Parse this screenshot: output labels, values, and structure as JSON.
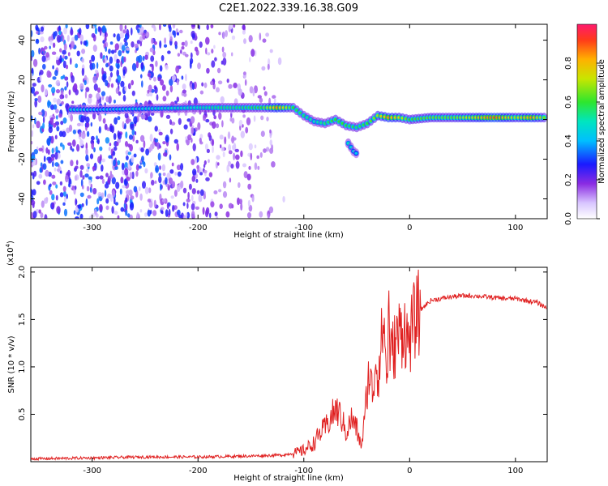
{
  "title": "C2E1.2022.339.16.38.G09",
  "colors": {
    "snr_line": "#e02020",
    "axes": "#000000"
  },
  "chart_data": [
    {
      "type": "heatmap",
      "xlabel": "Height of straight line (km)",
      "ylabel": "Frequency (Hz)",
      "xlim": [
        -358,
        130
      ],
      "ylim": [
        -50,
        48
      ],
      "x_ticks": [
        -300,
        -200,
        -100,
        0,
        100
      ],
      "x_tick_labels": [
        "-300",
        "-200",
        "-100",
        "0",
        "100"
      ],
      "y_ticks": [
        -40,
        -20,
        0,
        20,
        40
      ],
      "y_tick_labels": [
        "-40",
        "-20",
        "0",
        "20",
        "40"
      ],
      "colorbar": {
        "label": "Normalized spectral amplitude",
        "range": [
          0,
          1
        ],
        "ticks": [
          0.0,
          0.2,
          0.4,
          0.6,
          0.8
        ],
        "tick_labels": [
          "0.0",
          "0.2",
          "0.4",
          "0.6",
          "0.8"
        ]
      },
      "ridge": [
        {
          "x": -320,
          "f": 5,
          "a": 0.45
        },
        {
          "x": -295,
          "f": 5,
          "a": 0.4
        },
        {
          "x": -200,
          "f": 6,
          "a": 0.5
        },
        {
          "x": -180,
          "f": 6,
          "a": 0.55
        },
        {
          "x": -160,
          "f": 6,
          "a": 0.55
        },
        {
          "x": -140,
          "f": 6,
          "a": 0.6
        },
        {
          "x": -125,
          "f": 6,
          "a": 0.85
        },
        {
          "x": -110,
          "f": 6,
          "a": 0.6
        },
        {
          "x": -100,
          "f": 2,
          "a": 0.55
        },
        {
          "x": -90,
          "f": -1,
          "a": 0.5
        },
        {
          "x": -80,
          "f": -2,
          "a": 0.55
        },
        {
          "x": -70,
          "f": 0,
          "a": 0.6
        },
        {
          "x": -60,
          "f": -3,
          "a": 0.6
        },
        {
          "x": -50,
          "f": -4,
          "a": 0.55
        },
        {
          "x": -40,
          "f": -2,
          "a": 0.6
        },
        {
          "x": -30,
          "f": 2,
          "a": 0.7
        },
        {
          "x": -20,
          "f": 1,
          "a": 0.85
        },
        {
          "x": -10,
          "f": 1,
          "a": 0.75
        },
        {
          "x": 0,
          "f": 0,
          "a": 0.6
        },
        {
          "x": 20,
          "f": 1,
          "a": 0.65
        },
        {
          "x": 40,
          "f": 1,
          "a": 0.65
        },
        {
          "x": 60,
          "f": 1,
          "a": 0.75
        },
        {
          "x": 80,
          "f": 1,
          "a": 0.9
        },
        {
          "x": 100,
          "f": 1,
          "a": 0.7
        },
        {
          "x": 115,
          "f": 1,
          "a": 0.85
        },
        {
          "x": 130,
          "f": 1,
          "a": 0.6
        }
      ],
      "branch": [
        {
          "x": -58,
          "f": -12,
          "a": 0.5
        },
        {
          "x": -53,
          "f": -16,
          "a": 0.45
        },
        {
          "x": -48,
          "f": -18,
          "a": 0.4
        }
      ]
    },
    {
      "type": "line",
      "xlabel": "Height of straight line (km)",
      "ylabel": "SNR (10 * v/v)",
      "scale_label": "(x10",
      "scale_exp": "4",
      "scale_close": ")",
      "xlim": [
        -358,
        130
      ],
      "ylim": [
        0,
        2.05
      ],
      "x_ticks": [
        -300,
        -200,
        -100,
        0,
        100
      ],
      "x_tick_labels": [
        "-300",
        "-200",
        "-100",
        "0",
        "100"
      ],
      "y_ticks": [
        0.5,
        1.0,
        1.5,
        2.0
      ],
      "y_tick_labels": [
        "0.5",
        "1.0",
        "1.5",
        "2.0"
      ],
      "series": [
        {
          "x": [
            -358,
            -300,
            -250,
            -200,
            -150,
            -120,
            -105,
            -100,
            -90,
            -85,
            -80,
            -75,
            -70,
            -65,
            -60,
            -55,
            -50,
            -47,
            -45,
            -42,
            -40,
            -38,
            -35,
            -32,
            -30,
            -27,
            -25,
            -23,
            -21,
            -20,
            -18,
            -15,
            -12,
            -10,
            -7,
            -5,
            -2,
            0,
            5,
            10,
            15,
            20,
            30,
            40,
            50,
            60,
            70,
            80,
            90,
            100,
            110,
            120,
            130
          ],
          "y": [
            0.03,
            0.04,
            0.05,
            0.05,
            0.06,
            0.07,
            0.1,
            0.12,
            0.2,
            0.3,
            0.35,
            0.45,
            0.55,
            0.48,
            0.3,
            0.45,
            0.35,
            0.2,
            0.2,
            0.5,
            0.8,
            0.95,
            0.7,
            1.1,
            0.9,
            1.2,
            1.5,
            1.2,
            0.8,
            1.65,
            1.1,
            1.2,
            1.3,
            1.35,
            1.4,
            1.45,
            1.25,
            1.3,
            1.5,
            1.6,
            1.65,
            1.7,
            1.72,
            1.74,
            1.75,
            1.75,
            1.74,
            1.73,
            1.72,
            1.72,
            1.7,
            1.68,
            1.62
          ]
        }
      ]
    }
  ]
}
